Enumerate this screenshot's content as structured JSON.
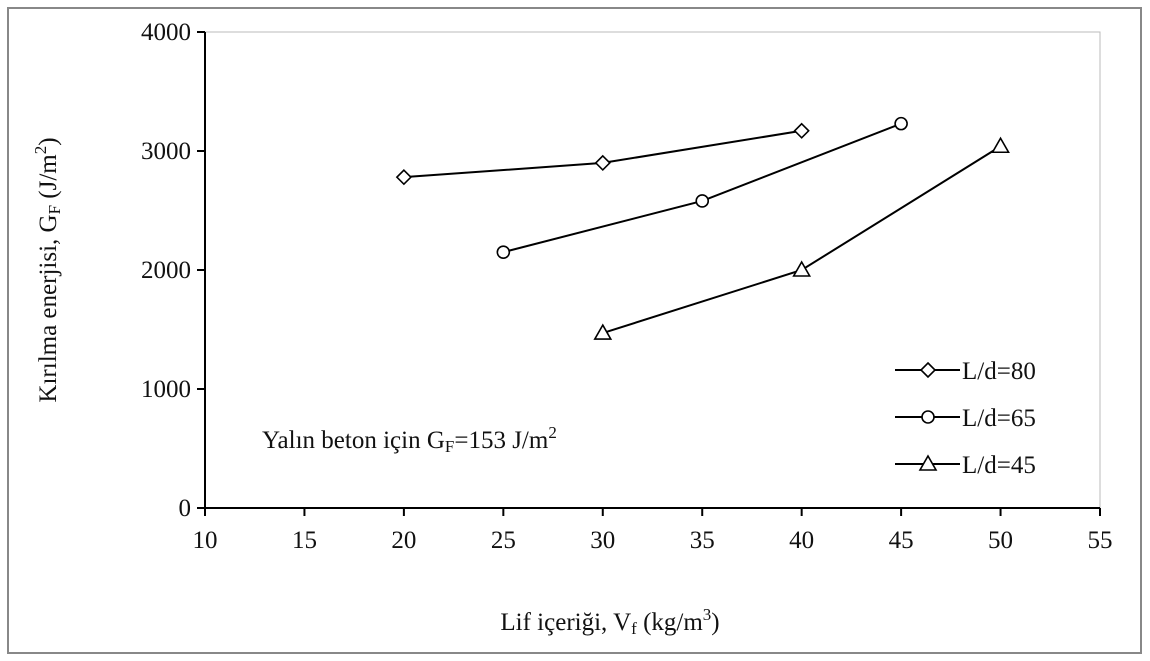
{
  "chart_data": {
    "type": "line",
    "xlabel": [
      "Lif içeriği, V",
      "f",
      " (kg/m",
      "3",
      ")"
    ],
    "ylabel": [
      "Kırılma enerjisi, G",
      "F",
      " (J/m",
      "2",
      ")"
    ],
    "annotation": [
      "Yalın beton için G",
      "F",
      "=153 J/m",
      "2"
    ],
    "xlim": [
      10,
      55
    ],
    "xticks": [
      10,
      15,
      20,
      25,
      30,
      35,
      40,
      45,
      50,
      55
    ],
    "ylim": [
      0,
      4000
    ],
    "yticks": [
      0,
      1000,
      2000,
      3000,
      4000
    ],
    "legend": "lower right",
    "series": [
      {
        "name": "L/d=80",
        "color": "#000000",
        "marker": "diamond",
        "x": [
          20,
          30,
          40
        ],
        "values": [
          2780,
          2900,
          3170
        ]
      },
      {
        "name": "L/d=65",
        "color": "#000000",
        "marker": "circle",
        "x": [
          25,
          35,
          45
        ],
        "values": [
          2150,
          2580,
          3230
        ]
      },
      {
        "name": "L/d=45",
        "color": "#000000",
        "marker": "triangle",
        "x": [
          30,
          40,
          50
        ],
        "values": [
          1470,
          2000,
          3040
        ]
      }
    ]
  }
}
